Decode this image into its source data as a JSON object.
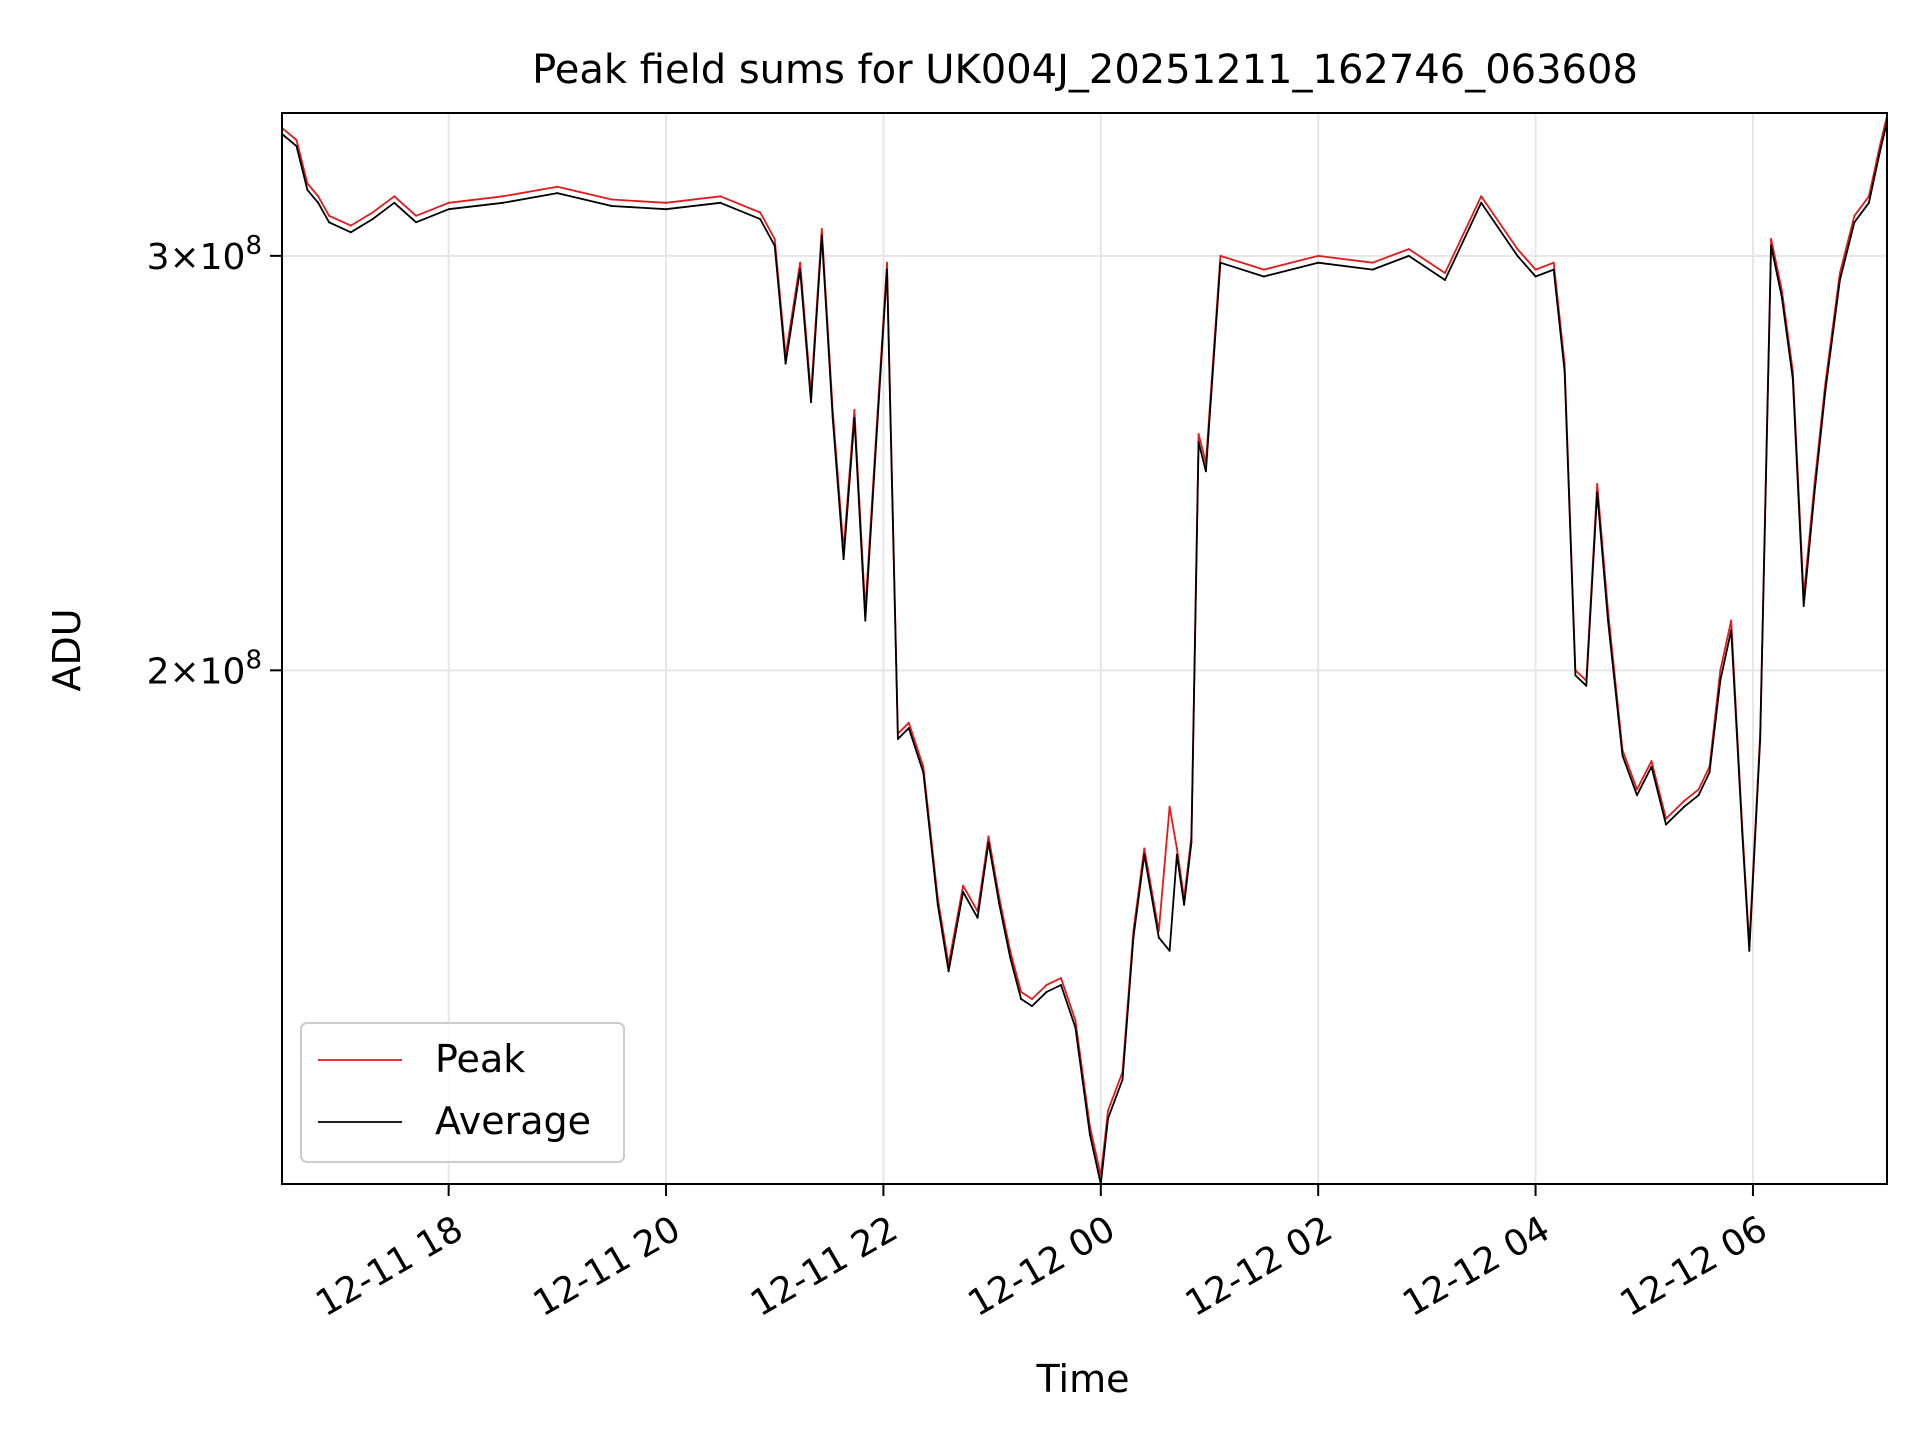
{
  "chart_data": {
    "type": "line",
    "title": "Peak field sums for UK004J_20251211_162746_063608",
    "xlabel": "Time",
    "ylabel": "ADU",
    "x_range": [
      "2025-12-11T16:28",
      "2025-12-12T07:14"
    ],
    "y_range": [
      121000000,
      345000000
    ],
    "y_scale": "log",
    "grid": true,
    "legend_position": "lower-left",
    "x_ticks": [
      {
        "t": "2025-12-11T18:00",
        "label": "12-11 18"
      },
      {
        "t": "2025-12-11T20:00",
        "label": "12-11 20"
      },
      {
        "t": "2025-12-11T22:00",
        "label": "12-11 22"
      },
      {
        "t": "2025-12-12T00:00",
        "label": "12-12 00"
      },
      {
        "t": "2025-12-12T02:00",
        "label": "12-12 02"
      },
      {
        "t": "2025-12-12T04:00",
        "label": "12-12 04"
      },
      {
        "t": "2025-12-12T06:00",
        "label": "12-12 06"
      }
    ],
    "y_ticks": [
      {
        "value": 200000000,
        "mantissa": "2",
        "base": "10",
        "exponent": "8"
      },
      {
        "value": 300000000,
        "mantissa": "3",
        "base": "10",
        "exponent": "8"
      }
    ],
    "series": [
      {
        "name": "Peak",
        "color": "#e31a1c",
        "x": [
          "2025-12-11T16:28",
          "2025-12-11T16:36",
          "2025-12-11T16:42",
          "2025-12-11T16:48",
          "2025-12-11T16:54",
          "2025-12-11T17:06",
          "2025-12-11T17:18",
          "2025-12-11T17:30",
          "2025-12-11T17:42",
          "2025-12-11T18:00",
          "2025-12-11T18:30",
          "2025-12-11T19:00",
          "2025-12-11T19:30",
          "2025-12-11T20:00",
          "2025-12-11T20:30",
          "2025-12-11T20:52",
          "2025-12-11T21:00",
          "2025-12-11T21:06",
          "2025-12-11T21:14",
          "2025-12-11T21:20",
          "2025-12-11T21:26",
          "2025-12-11T21:32",
          "2025-12-11T21:38",
          "2025-12-11T21:44",
          "2025-12-11T21:50",
          "2025-12-11T21:56",
          "2025-12-11T22:02",
          "2025-12-11T22:08",
          "2025-12-11T22:14",
          "2025-12-11T22:22",
          "2025-12-11T22:30",
          "2025-12-11T22:36",
          "2025-12-11T22:44",
          "2025-12-11T22:52",
          "2025-12-11T22:58",
          "2025-12-11T23:04",
          "2025-12-11T23:10",
          "2025-12-11T23:16",
          "2025-12-11T23:22",
          "2025-12-11T23:30",
          "2025-12-11T23:38",
          "2025-12-11T23:46",
          "2025-12-11T23:54",
          "2025-12-12T00:00",
          "2025-12-12T00:04",
          "2025-12-12T00:12",
          "2025-12-12T00:18",
          "2025-12-12T00:24",
          "2025-12-12T00:32",
          "2025-12-12T00:38",
          "2025-12-12T00:42",
          "2025-12-12T00:46",
          "2025-12-12T00:50",
          "2025-12-12T00:54",
          "2025-12-12T00:58",
          "2025-12-12T01:06",
          "2025-12-12T01:30",
          "2025-12-12T02:00",
          "2025-12-12T02:30",
          "2025-12-12T02:50",
          "2025-12-12T03:10",
          "2025-12-12T03:30",
          "2025-12-12T03:50",
          "2025-12-12T04:00",
          "2025-12-12T04:10",
          "2025-12-12T04:16",
          "2025-12-12T04:22",
          "2025-12-12T04:28",
          "2025-12-12T04:34",
          "2025-12-12T04:40",
          "2025-12-12T04:48",
          "2025-12-12T04:56",
          "2025-12-12T05:04",
          "2025-12-12T05:12",
          "2025-12-12T05:22",
          "2025-12-12T05:30",
          "2025-12-12T05:36",
          "2025-12-12T05:42",
          "2025-12-12T05:48",
          "2025-12-12T05:54",
          "2025-12-12T05:58",
          "2025-12-12T06:04",
          "2025-12-12T06:10",
          "2025-12-12T06:16",
          "2025-12-12T06:22",
          "2025-12-12T06:28",
          "2025-12-12T06:34",
          "2025-12-12T06:40",
          "2025-12-12T06:48",
          "2025-12-12T06:56",
          "2025-12-12T07:04",
          "2025-12-12T07:10",
          "2025-12-12T07:14"
        ],
        "values": [
          340000000,
          336000000,
          322000000,
          318000000,
          312000000,
          309000000,
          313000000,
          318000000,
          312000000,
          316000000,
          318000000,
          321000000,
          317000000,
          316000000,
          318000000,
          313000000,
          305000000,
          272000000,
          298000000,
          262000000,
          308000000,
          258000000,
          225000000,
          258000000,
          212000000,
          252000000,
          298000000,
          188000000,
          190000000,
          182000000,
          160000000,
          150000000,
          162000000,
          158000000,
          170000000,
          160000000,
          152000000,
          146000000,
          145000000,
          147000000,
          148000000,
          142000000,
          128000000,
          122000000,
          130000000,
          135000000,
          155000000,
          168000000,
          155000000,
          175000000,
          168000000,
          160000000,
          170000000,
          252000000,
          245000000,
          300000000,
          296000000,
          300000000,
          298000000,
          302000000,
          295000000,
          318000000,
          302000000,
          296000000,
          298000000,
          270000000,
          200000000,
          198000000,
          240000000,
          212000000,
          185000000,
          178000000,
          183000000,
          173000000,
          176000000,
          178000000,
          182000000,
          200000000,
          210000000,
          172000000,
          153000000,
          188000000,
          305000000,
          290000000,
          268000000,
          215000000,
          240000000,
          265000000,
          295000000,
          312000000,
          318000000,
          334000000,
          344000000
        ]
      },
      {
        "name": "Average",
        "color": "#000000",
        "x": [
          "2025-12-11T16:28",
          "2025-12-11T16:36",
          "2025-12-11T16:42",
          "2025-12-11T16:48",
          "2025-12-11T16:54",
          "2025-12-11T17:06",
          "2025-12-11T17:18",
          "2025-12-11T17:30",
          "2025-12-11T17:42",
          "2025-12-11T18:00",
          "2025-12-11T18:30",
          "2025-12-11T19:00",
          "2025-12-11T19:30",
          "2025-12-11T20:00",
          "2025-12-11T20:30",
          "2025-12-11T20:52",
          "2025-12-11T21:00",
          "2025-12-11T21:06",
          "2025-12-11T21:14",
          "2025-12-11T21:20",
          "2025-12-11T21:26",
          "2025-12-11T21:32",
          "2025-12-11T21:38",
          "2025-12-11T21:44",
          "2025-12-11T21:50",
          "2025-12-11T21:56",
          "2025-12-11T22:02",
          "2025-12-11T22:08",
          "2025-12-11T22:14",
          "2025-12-11T22:22",
          "2025-12-11T22:30",
          "2025-12-11T22:36",
          "2025-12-11T22:44",
          "2025-12-11T22:52",
          "2025-12-11T22:58",
          "2025-12-11T23:04",
          "2025-12-11T23:10",
          "2025-12-11T23:16",
          "2025-12-11T23:22",
          "2025-12-11T23:30",
          "2025-12-11T23:38",
          "2025-12-11T23:46",
          "2025-12-11T23:54",
          "2025-12-12T00:00",
          "2025-12-12T00:04",
          "2025-12-12T00:12",
          "2025-12-12T00:18",
          "2025-12-12T00:24",
          "2025-12-12T00:32",
          "2025-12-12T00:38",
          "2025-12-12T00:42",
          "2025-12-12T00:46",
          "2025-12-12T00:50",
          "2025-12-12T00:54",
          "2025-12-12T00:58",
          "2025-12-12T01:06",
          "2025-12-12T01:30",
          "2025-12-12T02:00",
          "2025-12-12T02:30",
          "2025-12-12T02:50",
          "2025-12-12T03:10",
          "2025-12-12T03:30",
          "2025-12-12T03:50",
          "2025-12-12T04:00",
          "2025-12-12T04:10",
          "2025-12-12T04:16",
          "2025-12-12T04:22",
          "2025-12-12T04:28",
          "2025-12-12T04:34",
          "2025-12-12T04:40",
          "2025-12-12T04:48",
          "2025-12-12T04:56",
          "2025-12-12T05:04",
          "2025-12-12T05:12",
          "2025-12-12T05:22",
          "2025-12-12T05:30",
          "2025-12-12T05:36",
          "2025-12-12T05:42",
          "2025-12-12T05:48",
          "2025-12-12T05:54",
          "2025-12-12T05:58",
          "2025-12-12T06:04",
          "2025-12-12T06:10",
          "2025-12-12T06:16",
          "2025-12-12T06:22",
          "2025-12-12T06:28",
          "2025-12-12T06:34",
          "2025-12-12T06:40",
          "2025-12-12T06:48",
          "2025-12-12T06:56",
          "2025-12-12T07:04",
          "2025-12-12T07:10",
          "2025-12-12T07:14"
        ],
        "values": [
          338000000,
          334000000,
          320000000,
          316000000,
          310000000,
          307000000,
          311000000,
          316000000,
          310000000,
          314000000,
          316000000,
          319000000,
          315000000,
          314000000,
          316000000,
          311000000,
          303000000,
          270000000,
          296000000,
          260000000,
          306000000,
          256000000,
          223000000,
          256000000,
          210000000,
          250000000,
          296000000,
          187000000,
          189000000,
          181000000,
          159000000,
          149000000,
          161000000,
          157000000,
          169000000,
          159000000,
          151000000,
          145000000,
          144000000,
          146000000,
          147000000,
          141000000,
          127000000,
          121000000,
          129000000,
          134000000,
          154000000,
          167000000,
          154000000,
          152000000,
          167000000,
          159000000,
          169000000,
          250000000,
          243000000,
          298000000,
          294000000,
          298000000,
          296000000,
          300000000,
          293000000,
          316000000,
          300000000,
          294000000,
          296000000,
          268000000,
          199000000,
          197000000,
          238000000,
          210000000,
          184000000,
          177000000,
          182000000,
          172000000,
          175000000,
          177000000,
          181000000,
          198000000,
          208000000,
          171000000,
          152000000,
          187000000,
          303000000,
          288000000,
          266000000,
          213000000,
          238000000,
          263000000,
          293000000,
          310000000,
          316000000,
          332000000,
          342000000
        ]
      }
    ]
  }
}
